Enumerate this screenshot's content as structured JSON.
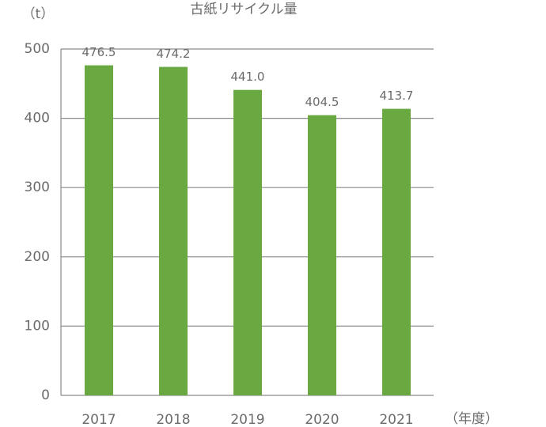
{
  "chart_data": {
    "type": "bar",
    "title": "古紙リサイクル量",
    "y_label": "（t）",
    "x_label": "（年度）",
    "categories": [
      "2017",
      "2018",
      "2019",
      "2020",
      "2021"
    ],
    "values": [
      476.5,
      474.2,
      441.0,
      404.5,
      413.7
    ],
    "value_labels": [
      "476.5",
      "474.2",
      "441.0",
      "404.5",
      "413.7"
    ],
    "color": "#6aa842",
    "ylim": [
      0,
      500
    ],
    "yticks": [
      0,
      100,
      200,
      300,
      400,
      500
    ],
    "grid": true
  }
}
